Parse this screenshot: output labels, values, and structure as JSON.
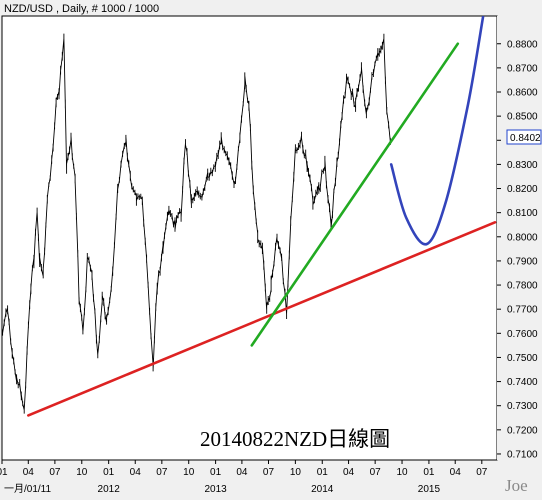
{
  "chart_data": {
    "type": "line",
    "title": "NZD/USD , Daily, # 1000 / 1000",
    "annotation": "20140822NZD日線圖",
    "watermark": "Joe",
    "current_price_label": "0.8402",
    "y_tick_labels": [
      "0.8800",
      "0.8700",
      "0.8600",
      "0.8500",
      "0.8400",
      "0.8300",
      "0.8200",
      "0.8100",
      "0.8000",
      "0.7900",
      "0.7800",
      "0.7700",
      "0.7600",
      "0.7500",
      "0.7400",
      "0.7300",
      "0.7200",
      "0.7100"
    ],
    "x_tick_labels": [
      "01",
      "04",
      "07",
      "10",
      "01",
      "04",
      "07",
      "10",
      "01",
      "04",
      "07",
      "10",
      "01",
      "04",
      "07",
      "10",
      "01",
      "04",
      "07"
    ],
    "x_year_labels": [
      "一月/01/11",
      "2012",
      "2013",
      "2014",
      "2015"
    ],
    "ylim": [
      0.7075,
      0.8915
    ],
    "xlim": [
      "2011-01-01",
      "2015-08-22"
    ],
    "grid": false,
    "series": [
      {
        "values": [
          [
            "2011-01-03",
            0.76
          ],
          [
            "2011-01-20",
            0.77
          ],
          [
            "2011-02-05",
            0.75
          ],
          [
            "2011-02-20",
            0.742
          ],
          [
            "2011-03-08",
            0.735
          ],
          [
            "2011-03-18",
            0.728
          ],
          [
            "2011-03-28",
            0.753
          ],
          [
            "2011-04-10",
            0.78
          ],
          [
            "2011-04-20",
            0.79
          ],
          [
            "2011-05-01",
            0.81
          ],
          [
            "2011-05-10",
            0.79
          ],
          [
            "2011-05-22",
            0.785
          ],
          [
            "2011-06-05",
            0.815
          ],
          [
            "2011-06-20",
            0.83
          ],
          [
            "2011-07-05",
            0.855
          ],
          [
            "2011-07-15",
            0.86
          ],
          [
            "2011-08-01",
            0.882
          ],
          [
            "2011-08-10",
            0.83
          ],
          [
            "2011-08-25",
            0.84
          ],
          [
            "2011-09-08",
            0.825
          ],
          [
            "2011-09-22",
            0.775
          ],
          [
            "2011-10-05",
            0.76
          ],
          [
            "2011-10-20",
            0.79
          ],
          [
            "2011-11-05",
            0.785
          ],
          [
            "2011-11-25",
            0.75
          ],
          [
            "2011-12-10",
            0.775
          ],
          [
            "2011-12-25",
            0.765
          ],
          [
            "2012-01-15",
            0.785
          ],
          [
            "2012-02-01",
            0.82
          ],
          [
            "2012-02-29",
            0.84
          ],
          [
            "2012-03-15",
            0.825
          ],
          [
            "2012-04-05",
            0.815
          ],
          [
            "2012-04-25",
            0.815
          ],
          [
            "2012-05-10",
            0.79
          ],
          [
            "2012-05-25",
            0.76
          ],
          [
            "2012-06-01",
            0.746
          ],
          [
            "2012-06-15",
            0.78
          ],
          [
            "2012-07-05",
            0.795
          ],
          [
            "2012-07-25",
            0.81
          ],
          [
            "2012-08-15",
            0.805
          ],
          [
            "2012-09-05",
            0.81
          ],
          [
            "2012-09-20",
            0.84
          ],
          [
            "2012-10-10",
            0.815
          ],
          [
            "2012-10-30",
            0.82
          ],
          [
            "2012-11-15",
            0.815
          ],
          [
            "2012-12-05",
            0.825
          ],
          [
            "2012-12-31",
            0.83
          ],
          [
            "2013-01-20",
            0.84
          ],
          [
            "2013-02-10",
            0.835
          ],
          [
            "2013-03-05",
            0.82
          ],
          [
            "2013-03-25",
            0.84
          ],
          [
            "2013-04-11",
            0.865
          ],
          [
            "2013-04-25",
            0.855
          ],
          [
            "2013-05-10",
            0.82
          ],
          [
            "2013-05-25",
            0.8
          ],
          [
            "2013-06-10",
            0.795
          ],
          [
            "2013-06-25",
            0.77
          ],
          [
            "2013-07-10",
            0.78
          ],
          [
            "2013-07-30",
            0.8
          ],
          [
            "2013-08-15",
            0.79
          ],
          [
            "2013-09-01",
            0.77
          ],
          [
            "2013-09-15",
            0.805
          ],
          [
            "2013-10-01",
            0.835
          ],
          [
            "2013-10-22",
            0.84
          ],
          [
            "2013-11-10",
            0.83
          ],
          [
            "2013-11-30",
            0.815
          ],
          [
            "2013-12-20",
            0.82
          ],
          [
            "2014-01-10",
            0.83
          ],
          [
            "2014-01-31",
            0.805
          ],
          [
            "2014-02-20",
            0.83
          ],
          [
            "2014-03-10",
            0.85
          ],
          [
            "2014-03-25",
            0.865
          ],
          [
            "2014-04-10",
            0.86
          ],
          [
            "2014-04-25",
            0.855
          ],
          [
            "2014-05-15",
            0.87
          ],
          [
            "2014-06-01",
            0.85
          ],
          [
            "2014-06-20",
            0.865
          ],
          [
            "2014-07-10",
            0.875
          ],
          [
            "2014-07-31",
            0.882
          ],
          [
            "2014-08-10",
            0.85
          ],
          [
            "2014-08-22",
            0.8402
          ]
        ]
      }
    ],
    "trendlines": [
      {
        "color": "#dd2222",
        "points": [
          [
            "2011-04-01",
            0.726
          ],
          [
            "2015-08-15",
            0.806
          ]
        ]
      },
      {
        "color": "#22aa22",
        "points": [
          [
            "2013-05-05",
            0.755
          ],
          [
            "2015-04-10",
            0.88
          ]
        ]
      }
    ],
    "projection": {
      "color": "#3344bb",
      "points": [
        [
          "2014-08-25",
          0.83
        ],
        [
          "2014-10-15",
          0.808
        ],
        [
          "2014-12-25",
          0.797
        ],
        [
          "2015-03-01",
          0.815
        ],
        [
          "2015-05-15",
          0.855
        ],
        [
          "2015-07-05",
          0.891
        ]
      ]
    },
    "price_label_color": "#2244cc"
  }
}
